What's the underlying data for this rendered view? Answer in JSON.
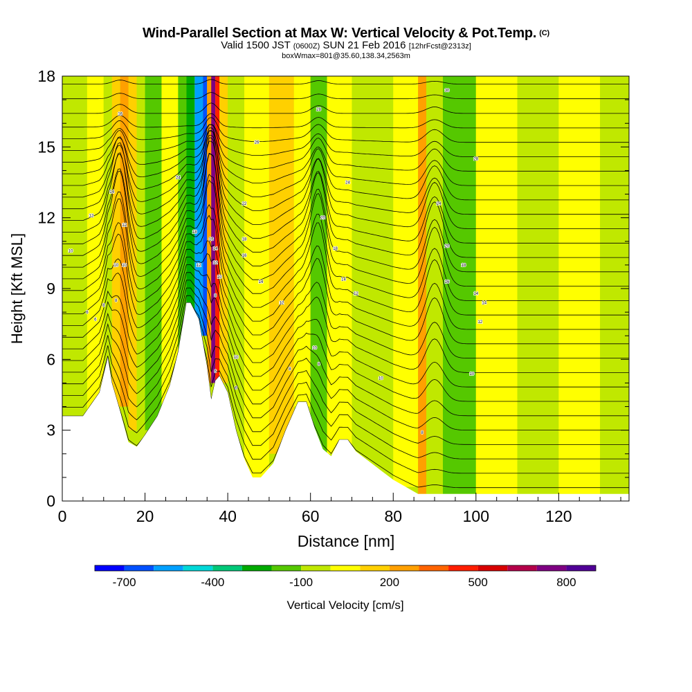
{
  "chart_data": {
    "type": "heatmap",
    "title": "Wind-Parallel Section at Max W: Vertical Velocity & Pot.Temp.",
    "copyright_mark": "(C)",
    "subtitle_main": "Valid 1500 JST",
    "subtitle_utc": "(0600Z)",
    "subtitle_date": "SUN 21 Feb 2016",
    "subtitle_fcst": "[12hrFcst@2313z]",
    "subtitle2": "boxWmax=801@35.60,138.34,2563m",
    "xlabel": "Distance [nm]",
    "ylabel": "Height [Kft MSL]",
    "xlim": [
      0,
      137
    ],
    "ylim": [
      0,
      18
    ],
    "xticks": [
      0,
      20,
      40,
      60,
      80,
      100,
      120
    ],
    "yticks": [
      0,
      3,
      6,
      9,
      12,
      15,
      18
    ],
    "colorbar": {
      "label": "Vertical Velocity [cm/s]",
      "tick_labels": [
        "-700",
        "-400",
        "-100",
        "200",
        "500",
        "800"
      ],
      "tick_values": [
        -700,
        -400,
        -100,
        200,
        500,
        800
      ],
      "levels": [
        -800,
        -700,
        -600,
        -500,
        -400,
        -300,
        -200,
        -100,
        0,
        100,
        200,
        300,
        400,
        500,
        600,
        700,
        800,
        900
      ],
      "colors": [
        "#0000ff",
        "#0050ff",
        "#00a0ff",
        "#00d8d8",
        "#00c878",
        "#00aa00",
        "#55c800",
        "#c0e800",
        "#ffff00",
        "#ffd000",
        "#ffa000",
        "#ff6400",
        "#ff1e00",
        "#d80000",
        "#b4004a",
        "#7e0082",
        "#500096"
      ]
    },
    "terrain_kft": [
      [
        0,
        3.6
      ],
      [
        5,
        3.6
      ],
      [
        9,
        4.6
      ],
      [
        11,
        6.1
      ],
      [
        12,
        5.0
      ],
      [
        14,
        3.8
      ],
      [
        16,
        2.5
      ],
      [
        18,
        2.3
      ],
      [
        20,
        2.8
      ],
      [
        23,
        3.6
      ],
      [
        26,
        4.9
      ],
      [
        28,
        6.3
      ],
      [
        30,
        8.4
      ],
      [
        31,
        8.4
      ],
      [
        33,
        7.7
      ],
      [
        35,
        5.7
      ],
      [
        36,
        4.3
      ],
      [
        37,
        5.1
      ],
      [
        38,
        5.3
      ],
      [
        40,
        4.6
      ],
      [
        42,
        3.0
      ],
      [
        44,
        1.8
      ],
      [
        46,
        1.0
      ],
      [
        48,
        1.0
      ],
      [
        51,
        1.6
      ],
      [
        54,
        3.0
      ],
      [
        57,
        4.2
      ],
      [
        59,
        4.2
      ],
      [
        61,
        3.1
      ],
      [
        63,
        2.2
      ],
      [
        65,
        1.9
      ],
      [
        67,
        2.6
      ],
      [
        69,
        2.6
      ],
      [
        71,
        2.1
      ],
      [
        74,
        1.7
      ],
      [
        77,
        1.3
      ],
      [
        80,
        0.9
      ],
      [
        83,
        0.6
      ],
      [
        86,
        0.3
      ],
      [
        90,
        0.3
      ],
      [
        137,
        0.3
      ]
    ],
    "vertical_velocity_cells": [
      {
        "x": [
          0,
          6
        ],
        "y": [
          0,
          18
        ],
        "w": -100
      },
      {
        "x": [
          6,
          10
        ],
        "y": [
          0,
          18
        ],
        "w": 0
      },
      {
        "x": [
          10,
          12
        ],
        "y": [
          6,
          18
        ],
        "w": -100
      },
      {
        "x": [
          12,
          14
        ],
        "y": [
          4,
          18
        ],
        "w": 100
      },
      {
        "x": [
          14,
          16
        ],
        "y": [
          4,
          18
        ],
        "w": 200
      },
      {
        "x": [
          16,
          18
        ],
        "y": [
          3,
          18
        ],
        "w": 100
      },
      {
        "x": [
          18,
          20
        ],
        "y": [
          3,
          18
        ],
        "w": -100
      },
      {
        "x": [
          20,
          24
        ],
        "y": [
          3,
          18
        ],
        "w": -200
      },
      {
        "x": [
          24,
          28
        ],
        "y": [
          4,
          18
        ],
        "w": 0
      },
      {
        "x": [
          28,
          30
        ],
        "y": [
          6,
          18
        ],
        "w": -200
      },
      {
        "x": [
          30,
          32
        ],
        "y": [
          8,
          18
        ],
        "w": -300
      },
      {
        "x": [
          32,
          34
        ],
        "y": [
          7,
          18
        ],
        "w": -600
      },
      {
        "x": [
          34,
          35
        ],
        "y": [
          7,
          18
        ],
        "w": -700
      },
      {
        "x": [
          35,
          36
        ],
        "y": [
          5,
          18
        ],
        "w": 200
      },
      {
        "x": [
          36,
          37
        ],
        "y": [
          5,
          18
        ],
        "w": 700
      },
      {
        "x": [
          37,
          38
        ],
        "y": [
          5,
          18
        ],
        "w": 400
      },
      {
        "x": [
          38,
          40
        ],
        "y": [
          5,
          18
        ],
        "w": 100
      },
      {
        "x": [
          40,
          44
        ],
        "y": [
          2,
          18
        ],
        "w": -100
      },
      {
        "x": [
          44,
          50
        ],
        "y": [
          1,
          18
        ],
        "w": 0
      },
      {
        "x": [
          50,
          56
        ],
        "y": [
          2,
          18
        ],
        "w": 100
      },
      {
        "x": [
          56,
          60
        ],
        "y": [
          4,
          18
        ],
        "w": 0
      },
      {
        "x": [
          60,
          64
        ],
        "y": [
          2,
          18
        ],
        "w": -200
      },
      {
        "x": [
          64,
          70
        ],
        "y": [
          2,
          18
        ],
        "w": 0
      },
      {
        "x": [
          70,
          80
        ],
        "y": [
          1,
          18
        ],
        "w": -100
      },
      {
        "x": [
          80,
          86
        ],
        "y": [
          0.6,
          18
        ],
        "w": 0
      },
      {
        "x": [
          86,
          88
        ],
        "y": [
          0.3,
          18
        ],
        "w": 200
      },
      {
        "x": [
          88,
          92
        ],
        "y": [
          0.3,
          18
        ],
        "w": -100
      },
      {
        "x": [
          92,
          100
        ],
        "y": [
          0.3,
          18
        ],
        "w": -200
      },
      {
        "x": [
          100,
          110
        ],
        "y": [
          0.3,
          18
        ],
        "w": 0
      },
      {
        "x": [
          110,
          120
        ],
        "y": [
          0.3,
          18
        ],
        "w": -100
      },
      {
        "x": [
          120,
          130
        ],
        "y": [
          0.3,
          18
        ],
        "w": 0
      },
      {
        "x": [
          130,
          137
        ],
        "y": [
          0.3,
          18
        ],
        "w": -100
      }
    ],
    "potential_temperature_labels": [
      {
        "x": 14,
        "y": 16.4,
        "text": "16"
      },
      {
        "x": 12,
        "y": 13.1,
        "text": "14"
      },
      {
        "x": 7,
        "y": 12.1,
        "text": "12"
      },
      {
        "x": 2,
        "y": 10.6,
        "text": "10"
      },
      {
        "x": 15,
        "y": 11.7,
        "text": "12"
      },
      {
        "x": 13,
        "y": 10.0,
        "text": "10"
      },
      {
        "x": 15,
        "y": 10.0,
        "text": "10"
      },
      {
        "x": 13,
        "y": 8.5,
        "text": "8"
      },
      {
        "x": 10,
        "y": 8.3,
        "text": "8"
      },
      {
        "x": 6,
        "y": 8.0,
        "text": "6"
      },
      {
        "x": 8,
        "y": 7.7,
        "text": "6"
      },
      {
        "x": 28,
        "y": 13.7,
        "text": "24"
      },
      {
        "x": 32,
        "y": 11.4,
        "text": "18"
      },
      {
        "x": 36,
        "y": 11.1,
        "text": "16"
      },
      {
        "x": 37,
        "y": 10.7,
        "text": "14"
      },
      {
        "x": 37,
        "y": 10.1,
        "text": "12"
      },
      {
        "x": 33,
        "y": 10.0,
        "text": "12"
      },
      {
        "x": 38,
        "y": 9.5,
        "text": "10"
      },
      {
        "x": 37,
        "y": 8.7,
        "text": "8"
      },
      {
        "x": 37,
        "y": 5.5,
        "text": "6"
      },
      {
        "x": 47,
        "y": 15.2,
        "text": "26"
      },
      {
        "x": 44,
        "y": 12.6,
        "text": "22"
      },
      {
        "x": 44,
        "y": 11.1,
        "text": "18"
      },
      {
        "x": 44,
        "y": 10.4,
        "text": "16"
      },
      {
        "x": 48,
        "y": 9.3,
        "text": "14"
      },
      {
        "x": 53,
        "y": 8.4,
        "text": "12"
      },
      {
        "x": 42,
        "y": 6.1,
        "text": "10"
      },
      {
        "x": 42,
        "y": 4.8,
        "text": "6"
      },
      {
        "x": 55,
        "y": 5.6,
        "text": "8"
      },
      {
        "x": 62,
        "y": 16.6,
        "text": "28"
      },
      {
        "x": 69,
        "y": 13.5,
        "text": "24"
      },
      {
        "x": 63,
        "y": 12.0,
        "text": "20"
      },
      {
        "x": 66,
        "y": 10.7,
        "text": "18"
      },
      {
        "x": 68,
        "y": 9.4,
        "text": "14"
      },
      {
        "x": 71,
        "y": 8.8,
        "text": "12"
      },
      {
        "x": 61,
        "y": 6.5,
        "text": "10"
      },
      {
        "x": 62,
        "y": 5.8,
        "text": "8"
      },
      {
        "x": 77,
        "y": 5.2,
        "text": "10"
      },
      {
        "x": 87,
        "y": 2.9,
        "text": "8"
      },
      {
        "x": 93,
        "y": 17.4,
        "text": "30"
      },
      {
        "x": 100,
        "y": 14.5,
        "text": "28"
      },
      {
        "x": 91,
        "y": 12.6,
        "text": "24"
      },
      {
        "x": 93,
        "y": 10.8,
        "text": "20"
      },
      {
        "x": 97,
        "y": 10.0,
        "text": "18"
      },
      {
        "x": 93,
        "y": 9.3,
        "text": "16"
      },
      {
        "x": 100,
        "y": 8.8,
        "text": "14"
      },
      {
        "x": 102,
        "y": 8.4,
        "text": "14"
      },
      {
        "x": 101,
        "y": 7.6,
        "text": "12"
      },
      {
        "x": 99,
        "y": 5.4,
        "text": "10"
      }
    ]
  }
}
